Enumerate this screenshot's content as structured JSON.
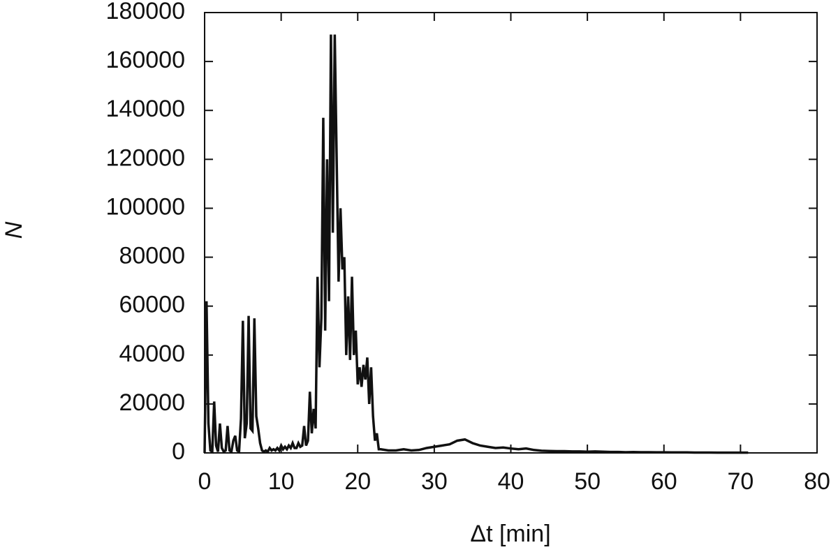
{
  "chart_data": {
    "type": "line",
    "x_label": "Δt [min]",
    "y_label": "N",
    "x": [
      0,
      0.25,
      0.5,
      0.75,
      1,
      1.25,
      1.5,
      1.75,
      2,
      2.25,
      2.5,
      2.75,
      3,
      3.25,
      3.5,
      3.75,
      4,
      4.25,
      4.5,
      4.75,
      5,
      5.25,
      5.5,
      5.75,
      6,
      6.25,
      6.5,
      6.75,
      7,
      7.25,
      7.5,
      7.75,
      8,
      8.25,
      8.5,
      8.75,
      9,
      9.25,
      9.5,
      9.75,
      10,
      10.25,
      10.5,
      10.75,
      11,
      11.25,
      11.5,
      11.75,
      12,
      12.25,
      12.5,
      12.75,
      13,
      13.25,
      13.5,
      13.75,
      14,
      14.25,
      14.5,
      14.75,
      15,
      15.25,
      15.5,
      15.75,
      16,
      16.25,
      16.5,
      16.75,
      17,
      17.25,
      17.5,
      17.75,
      18,
      18.25,
      18.5,
      18.75,
      19,
      19.25,
      19.5,
      19.75,
      20,
      20.25,
      20.5,
      20.75,
      21,
      21.25,
      21.5,
      21.75,
      22,
      22.25,
      22.5,
      22.75,
      23,
      24,
      25,
      26,
      27,
      28,
      29,
      30,
      31,
      32,
      33,
      34,
      35,
      36,
      37,
      38,
      39,
      40,
      41,
      42,
      43,
      44,
      45,
      46,
      47,
      48,
      49,
      50,
      51,
      52,
      53,
      54,
      55,
      56,
      57,
      58,
      59,
      60,
      61,
      62,
      63,
      64,
      65,
      66,
      67,
      68,
      69,
      70,
      71
    ],
    "series": [
      {
        "color": "#111111",
        "values": [
          0,
          62000,
          12000,
          1000,
          500,
          21000,
          3000,
          500,
          12000,
          2000,
          500,
          1000,
          11000,
          1000,
          500,
          5000,
          7000,
          1000,
          500,
          14000,
          54000,
          6000,
          12000,
          56000,
          10000,
          9000,
          55000,
          15000,
          10000,
          4000,
          1000,
          500,
          1000,
          500,
          2000,
          1000,
          1500,
          1000,
          2000,
          1000,
          3000,
          1500,
          2500,
          1500,
          3000,
          2000,
          4000,
          2000,
          2000,
          4000,
          2500,
          3000,
          11000,
          3000,
          5000,
          25000,
          8000,
          18000,
          10000,
          72000,
          35000,
          55000,
          137000,
          50000,
          120000,
          62000,
          171000,
          90000,
          171000,
          120000,
          70000,
          100000,
          75000,
          80000,
          40000,
          64000,
          38000,
          72000,
          40000,
          50000,
          28000,
          35000,
          27000,
          36000,
          30000,
          39000,
          20000,
          35000,
          15000,
          5000,
          8000,
          1500,
          1500,
          1000,
          1000,
          1500,
          1000,
          1200,
          2000,
          2500,
          3000,
          3500,
          5000,
          5500,
          4000,
          3000,
          2500,
          2000,
          2200,
          1800,
          1500,
          1800,
          1200,
          900,
          800,
          700,
          700,
          600,
          600,
          500,
          600,
          500,
          400,
          400,
          300,
          350,
          300,
          300,
          250,
          250,
          200,
          200,
          200,
          150,
          150,
          150,
          100,
          100,
          100,
          100,
          100
        ]
      }
    ],
    "xlim": [
      0,
      80
    ],
    "xticks": [
      0,
      10,
      20,
      30,
      40,
      50,
      60,
      70,
      80
    ],
    "ylim": [
      0,
      180000
    ],
    "yticks": [
      0,
      20000,
      40000,
      60000,
      80000,
      100000,
      120000,
      140000,
      160000,
      180000
    ]
  }
}
